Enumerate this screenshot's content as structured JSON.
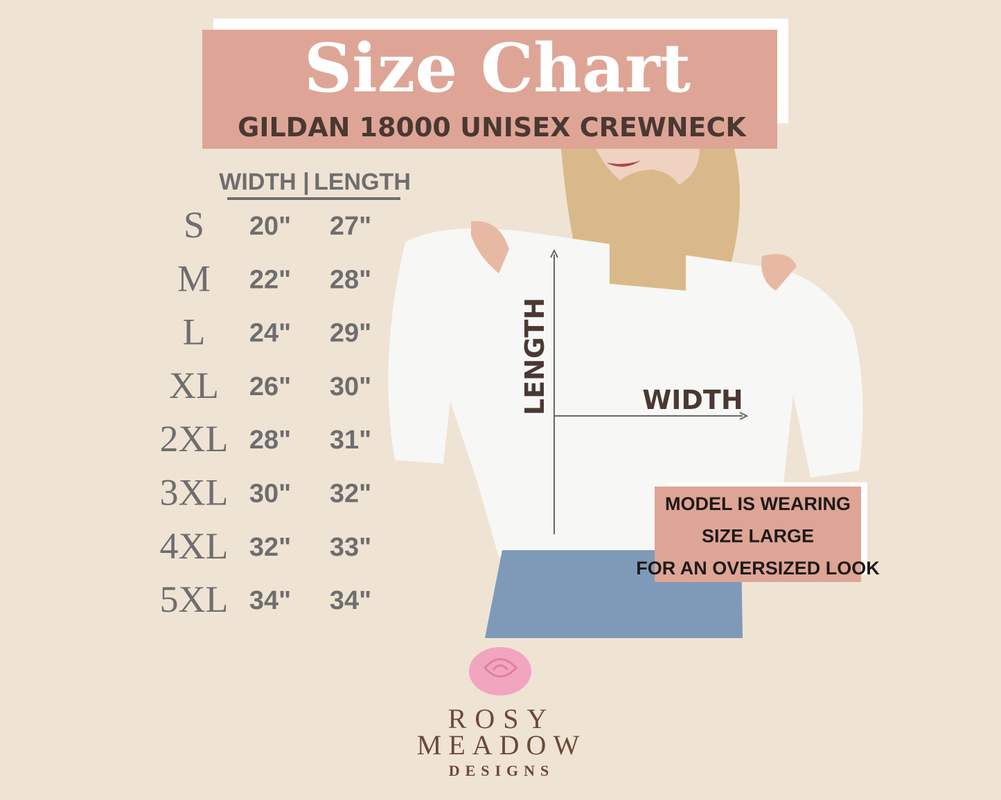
{
  "header": {
    "title": "Size Chart",
    "subtitle": "GILDAN 18000 UNISEX CREWNECK"
  },
  "table": {
    "columns": [
      "WIDTH",
      "|",
      "LENGTH"
    ],
    "rows": [
      [
        "S",
        "20\"",
        "27\""
      ],
      [
        "M",
        "22\"",
        "28\""
      ],
      [
        "L",
        "24\"",
        "29\""
      ],
      [
        "XL",
        "26\"",
        "30\""
      ],
      [
        "2XL",
        "28\"",
        "31\""
      ],
      [
        "3XL",
        "30\"",
        "32\""
      ],
      [
        "4XL",
        "32\"",
        "33\""
      ],
      [
        "5XL",
        "34\"",
        "34\""
      ]
    ]
  },
  "diagram": {
    "length_label": "LENGTH",
    "width_label": "WIDTH"
  },
  "note": {
    "lines": [
      "MODEL IS WEARING",
      "SIZE LARGE",
      "FOR AN OVERSIZED LOOK"
    ]
  },
  "brand": {
    "lines": [
      "ROSY",
      "MEADOW",
      "DESIGNS"
    ]
  }
}
